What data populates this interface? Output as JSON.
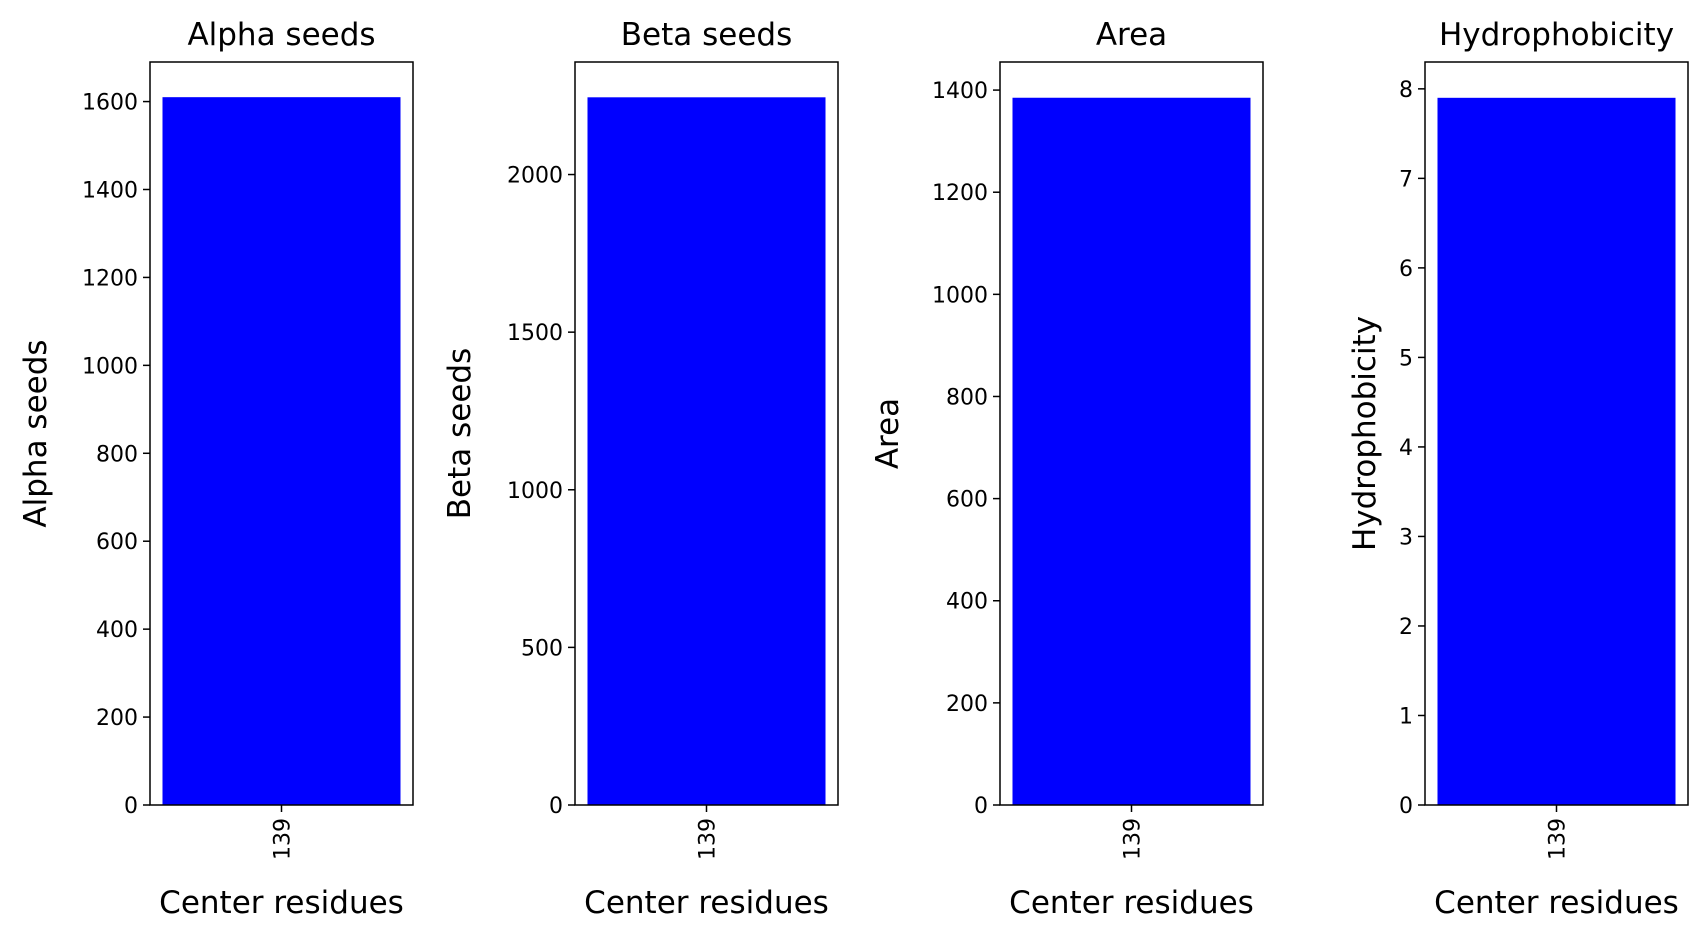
{
  "chart_data": [
    {
      "type": "bar",
      "title": "Alpha seeds",
      "xlabel": "Center residues",
      "ylabel": "Alpha seeds",
      "categories": [
        "139"
      ],
      "values": [
        1610
      ],
      "ylim": [
        0,
        1690
      ],
      "yticks": [
        "0",
        "200",
        "400",
        "600",
        "800",
        "1000",
        "1200",
        "1400",
        "1600"
      ],
      "bar_color": "#0000ff",
      "grid": false
    },
    {
      "type": "bar",
      "title": "Beta seeds",
      "xlabel": "Center residues",
      "ylabel": "Beta seeds",
      "categories": [
        "139"
      ],
      "values": [
        2245
      ],
      "ylim": [
        0,
        2357
      ],
      "yticks": [
        "0",
        "500",
        "1000",
        "1500",
        "2000"
      ],
      "bar_color": "#0000ff",
      "grid": false
    },
    {
      "type": "bar",
      "title": "Area",
      "xlabel": "Center residues",
      "ylabel": "Area",
      "categories": [
        "139"
      ],
      "values": [
        1385
      ],
      "ylim": [
        0,
        1455
      ],
      "yticks": [
        "0",
        "200",
        "400",
        "600",
        "800",
        "1000",
        "1200",
        "1400"
      ],
      "bar_color": "#0000ff",
      "grid": false
    },
    {
      "type": "bar",
      "title": "Hydrophobicity",
      "xlabel": "Center residues",
      "ylabel": "Hydrophobicity",
      "categories": [
        "139"
      ],
      "values": [
        7.9
      ],
      "ylim": [
        0,
        8.3
      ],
      "yticks": [
        "0",
        "1",
        "2",
        "3",
        "4",
        "5",
        "6",
        "7",
        "8"
      ],
      "bar_color": "#0000ff",
      "grid": false
    }
  ]
}
